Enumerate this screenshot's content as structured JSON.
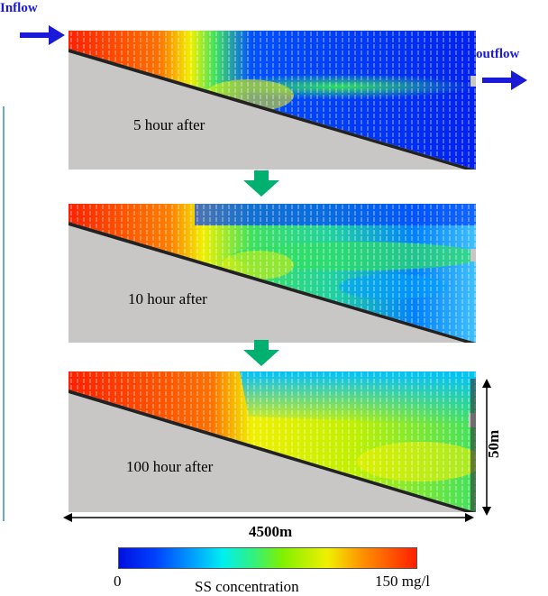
{
  "labels": {
    "inflow": "Inflow",
    "outflow": "outflow"
  },
  "panels": [
    {
      "caption": "5 hour after"
    },
    {
      "caption": "10 hour after"
    },
    {
      "caption": "100 hour after"
    }
  ],
  "dimensions": {
    "width": "4500m",
    "height": "50m"
  },
  "colorbar": {
    "min_label": "0",
    "max_label": "150 mg/l",
    "title": "SS concentration"
  },
  "colors": {
    "flow_arrow": "#1a1ad8",
    "step_arrow": "#00b070",
    "bed": "#c9c6c6",
    "low": "#0010e0",
    "high": "#ff2000"
  }
}
